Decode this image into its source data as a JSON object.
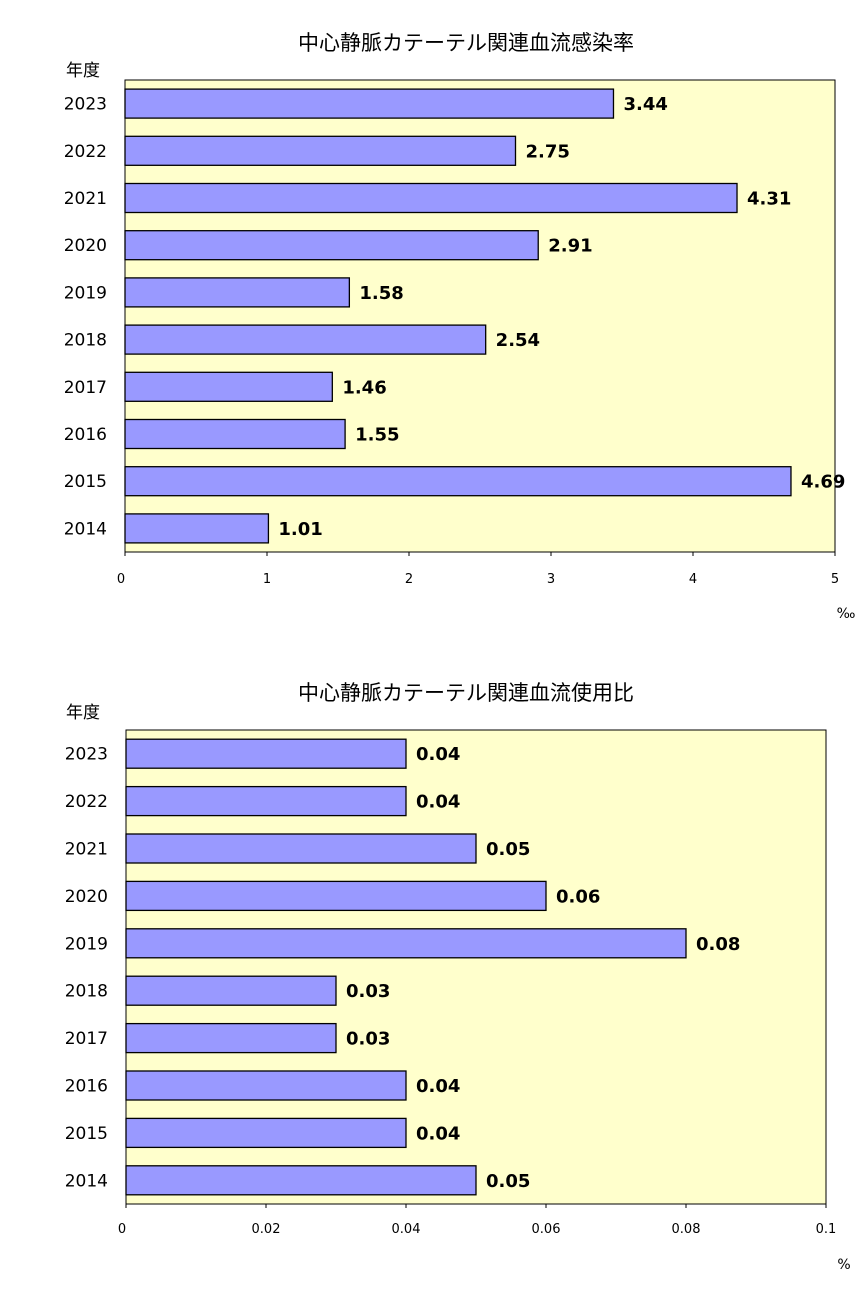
{
  "chart_data": [
    {
      "type": "bar",
      "orientation": "horizontal",
      "title": "中心静脈カテーテル関連血流感染率",
      "ylabel": "年度",
      "xlabel": "‰",
      "categories": [
        "2023",
        "2022",
        "2021",
        "2020",
        "2019",
        "2018",
        "2017",
        "2016",
        "2015",
        "2014"
      ],
      "values": [
        3.44,
        2.75,
        4.31,
        2.91,
        1.58,
        2.54,
        1.46,
        1.55,
        4.69,
        1.01
      ],
      "data_labels": [
        "3.44",
        "2.75",
        "4.31",
        "2.91",
        "1.58",
        "2.54",
        "1.46",
        "1.55",
        "4.69",
        "1.01"
      ],
      "xlim": [
        0,
        5
      ],
      "xticks": [
        "0",
        "1",
        "2",
        "3",
        "4",
        "5"
      ],
      "grid": false,
      "colors": {
        "bar": "#9999ff",
        "plot_background": "#ffffcc"
      }
    },
    {
      "type": "bar",
      "orientation": "horizontal",
      "title": "中心静脈カテーテル関連血流使用比",
      "ylabel": "年度",
      "xlabel": "%",
      "categories": [
        "2023",
        "2022",
        "2021",
        "2020",
        "2019",
        "2018",
        "2017",
        "2016",
        "2015",
        "2014"
      ],
      "values": [
        0.04,
        0.04,
        0.05,
        0.06,
        0.08,
        0.03,
        0.03,
        0.04,
        0.04,
        0.05
      ],
      "data_labels": [
        "0.04",
        "0.04",
        "0.05",
        "0.06",
        "0.08",
        "0.03",
        "0.03",
        "0.04",
        "0.04",
        "0.05"
      ],
      "xlim": [
        0,
        0.1
      ],
      "xticks": [
        "0",
        "0.02",
        "0.04",
        "0.06",
        "0.08",
        "0.1"
      ],
      "grid": false,
      "colors": {
        "bar": "#9999ff",
        "plot_background": "#ffffcc"
      }
    }
  ]
}
